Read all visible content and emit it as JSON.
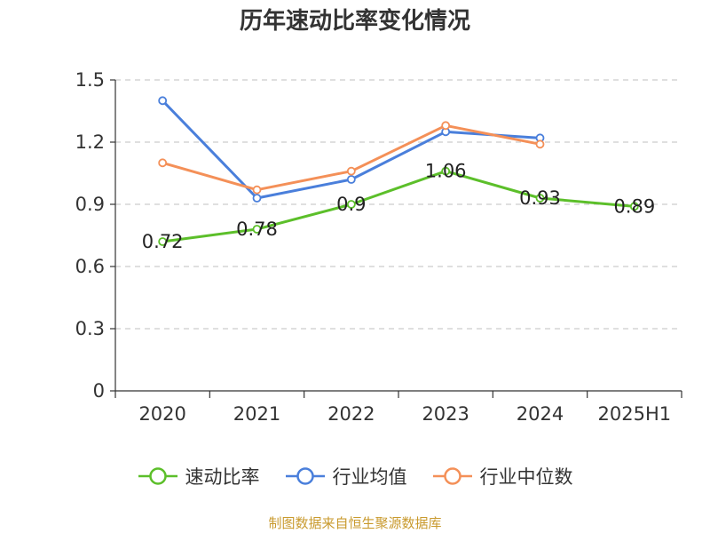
{
  "chart_data": {
    "type": "line",
    "title": "历年速动比率变化情况",
    "categories": [
      "2020",
      "2021",
      "2022",
      "2023",
      "2024",
      "2025H1"
    ],
    "ylim": [
      0,
      1.5
    ],
    "yticks": [
      "0",
      "0.3",
      "0.6",
      "0.9",
      "1.2",
      "1.5"
    ],
    "grid": true,
    "legend_position": "bottom",
    "series": [
      {
        "name": "速动比率",
        "color": "#5cbf2a",
        "values": [
          0.72,
          0.78,
          0.9,
          1.06,
          0.93,
          0.89
        ],
        "labels": [
          "0.72",
          "0.78",
          "0.9",
          "1.06",
          "0.93",
          "0.89"
        ]
      },
      {
        "name": "行业均值",
        "color": "#4a7fdb",
        "values": [
          1.4,
          0.93,
          1.02,
          1.25,
          1.22,
          null
        ]
      },
      {
        "name": "行业中位数",
        "color": "#f49058",
        "values": [
          1.1,
          0.97,
          1.06,
          1.28,
          1.19,
          null
        ]
      }
    ],
    "source": "制图数据来自恒生聚源数据库"
  }
}
